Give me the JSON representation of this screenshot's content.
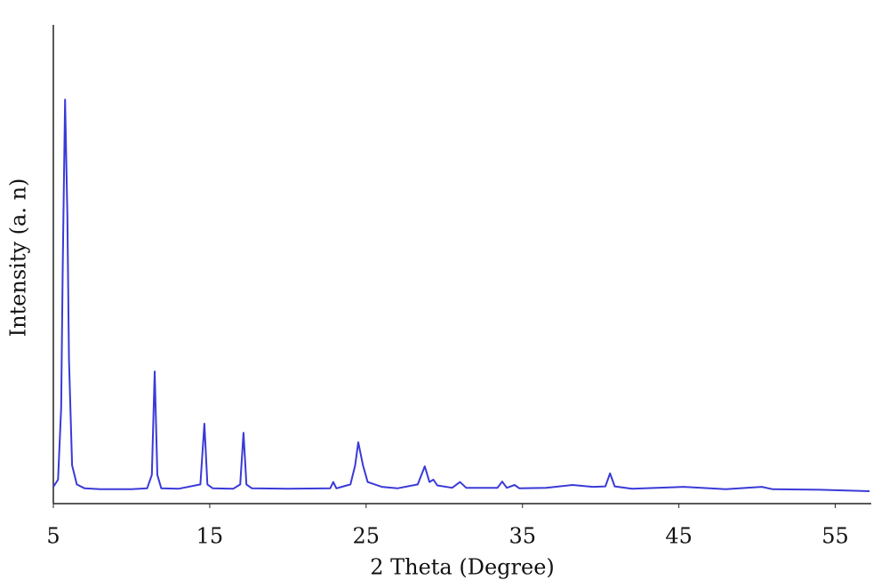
{
  "chart_data": {
    "type": "line",
    "xlabel": "2 Theta (Degree)",
    "ylabel": "Intensity (a. n)",
    "xlim": [
      5,
      57.3
    ],
    "ylim": [
      0,
      100
    ],
    "xticks": [
      5,
      15,
      25,
      35,
      45,
      55
    ],
    "series": [
      {
        "color": "#3a3ad8",
        "x": [
          5.0,
          5.3,
          5.5,
          5.6,
          5.75,
          5.9,
          6.0,
          6.2,
          6.5,
          7.0,
          8.0,
          9.0,
          10.0,
          11.0,
          11.3,
          11.48,
          11.65,
          11.9,
          13.0,
          14.4,
          14.66,
          14.85,
          15.2,
          16.5,
          16.95,
          17.16,
          17.35,
          17.7,
          20.0,
          22.7,
          22.9,
          23.1,
          24.0,
          24.3,
          24.5,
          24.8,
          25.1,
          26.0,
          27.0,
          28.3,
          28.75,
          29.05,
          29.3,
          29.55,
          30.5,
          31.0,
          31.4,
          33.4,
          33.7,
          34.0,
          34.5,
          34.8,
          36.5,
          38.2,
          39.5,
          40.3,
          40.6,
          40.9,
          42.0,
          45.3,
          48.0,
          50.3,
          51.0,
          54.0,
          57.2
        ],
        "values": [
          3.5,
          5,
          20,
          50,
          84.4,
          60,
          30,
          8,
          4,
          3.2,
          3,
          3,
          3,
          3.2,
          6,
          27.6,
          6,
          3.2,
          3.1,
          4,
          16.7,
          4,
          3.2,
          3.1,
          4,
          14.8,
          4,
          3.2,
          3.1,
          3.2,
          4.5,
          3.2,
          4,
          8,
          12.8,
          8,
          4.5,
          3.5,
          3.2,
          4,
          7.8,
          4.5,
          5,
          3.8,
          3.3,
          4.5,
          3.3,
          3.3,
          4.6,
          3.3,
          3.9,
          3.2,
          3.3,
          3.9,
          3.5,
          3.6,
          6.3,
          3.6,
          3.1,
          3.5,
          3.0,
          3.5,
          3.0,
          2.9,
          2.6
        ]
      }
    ]
  }
}
